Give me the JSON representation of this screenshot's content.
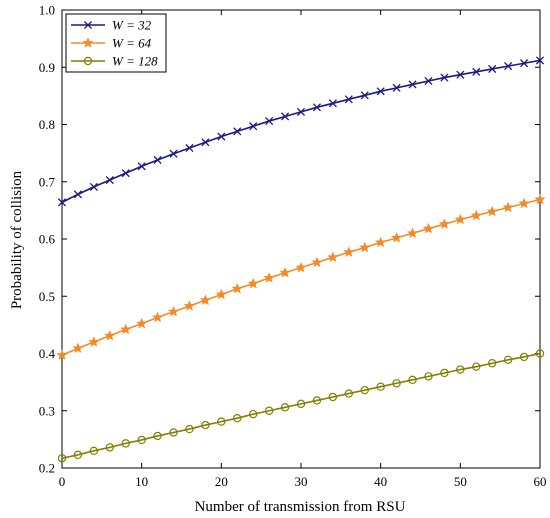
{
  "chart_data": {
    "type": "line",
    "title": "",
    "xlabel": "Number of transmission from RSU",
    "ylabel": "Probability of collision",
    "xlim": [
      0,
      60
    ],
    "ylim": [
      0.2,
      1.0
    ],
    "x_ticks": [
      "0",
      "10",
      "20",
      "30",
      "40",
      "50",
      "60"
    ],
    "y_ticks": [
      "0.2",
      "0.3",
      "0.4",
      "0.5",
      "0.6",
      "0.7",
      "0.8",
      "0.9",
      "1.0"
    ],
    "grid": false,
    "legend_position": "top-left",
    "x": [
      0,
      2,
      4,
      6,
      8,
      10,
      12,
      14,
      16,
      18,
      20,
      22,
      24,
      26,
      28,
      30,
      32,
      34,
      36,
      38,
      40,
      42,
      44,
      46,
      48,
      50,
      52,
      54,
      56,
      58,
      60
    ],
    "series": [
      {
        "name": "W = 32",
        "color": "#1a1a80",
        "marker": "x",
        "values": [
          0.664,
          0.678,
          0.691,
          0.703,
          0.715,
          0.727,
          0.738,
          0.749,
          0.759,
          0.769,
          0.779,
          0.788,
          0.797,
          0.806,
          0.814,
          0.822,
          0.83,
          0.837,
          0.844,
          0.851,
          0.858,
          0.864,
          0.87,
          0.876,
          0.882,
          0.887,
          0.892,
          0.897,
          0.902,
          0.907,
          0.912
        ]
      },
      {
        "name": "W = 64",
        "color": "#f28c28",
        "marker": "star",
        "values": [
          0.397,
          0.409,
          0.42,
          0.431,
          0.442,
          0.452,
          0.463,
          0.473,
          0.483,
          0.493,
          0.503,
          0.513,
          0.522,
          0.532,
          0.541,
          0.55,
          0.559,
          0.568,
          0.577,
          0.585,
          0.594,
          0.602,
          0.61,
          0.618,
          0.626,
          0.634,
          0.641,
          0.648,
          0.655,
          0.662,
          0.669
        ]
      },
      {
        "name": "W = 128",
        "color": "#808000",
        "marker": "circle",
        "values": [
          0.217,
          0.223,
          0.23,
          0.236,
          0.243,
          0.249,
          0.256,
          0.262,
          0.268,
          0.275,
          0.281,
          0.287,
          0.294,
          0.3,
          0.306,
          0.312,
          0.318,
          0.324,
          0.33,
          0.336,
          0.342,
          0.348,
          0.354,
          0.36,
          0.366,
          0.372,
          0.377,
          0.383,
          0.389,
          0.394,
          0.4
        ]
      }
    ]
  }
}
